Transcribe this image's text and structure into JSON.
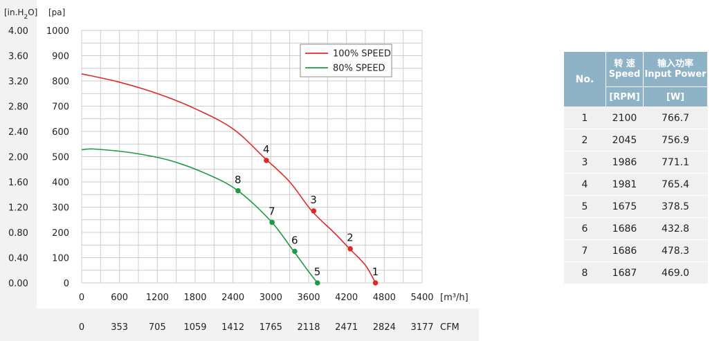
{
  "chart_data": {
    "type": "line",
    "y_left_label": "[in.H2O]",
    "y_left_ticks": [
      "0.00",
      "0.40",
      "0.80",
      "1.20",
      "1.60",
      "2.00",
      "2.40",
      "2.80",
      "3.20",
      "3.60",
      "4.00"
    ],
    "y_right_label": "[pa]",
    "y_ticks": [
      "0",
      "100",
      "200",
      "300",
      "400",
      "500",
      "600",
      "700",
      "800",
      "900",
      "1000"
    ],
    "ylim": [
      0,
      1000
    ],
    "x_ticks": [
      "0",
      "600",
      "1200",
      "1800",
      "2400",
      "3000",
      "3600",
      "4200",
      "4800",
      "5400"
    ],
    "x_unit": "[m³/h]",
    "xlim": [
      0,
      5400
    ],
    "x2_ticks": [
      "0",
      "353",
      "705",
      "1059",
      "1412",
      "1765",
      "2118",
      "2471",
      "2824",
      "3177"
    ],
    "x2_unit": "CFM",
    "grid": true,
    "legend_position": "top-right",
    "series": [
      {
        "name": "100% SPEED",
        "color": "#e0282a",
        "curve": [
          [
            0,
            828
          ],
          [
            600,
            795
          ],
          [
            1200,
            750
          ],
          [
            1800,
            690
          ],
          [
            2400,
            610
          ],
          [
            2900,
            495
          ],
          [
            3300,
            400
          ],
          [
            3650,
            285
          ],
          [
            4000,
            200
          ],
          [
            4250,
            135
          ],
          [
            4500,
            70
          ],
          [
            4660,
            0
          ]
        ],
        "points": [
          {
            "label": "4",
            "x": 2930,
            "y": 485
          },
          {
            "label": "3",
            "x": 3680,
            "y": 285
          },
          {
            "label": "2",
            "x": 4260,
            "y": 135
          },
          {
            "label": "1",
            "x": 4660,
            "y": 0
          }
        ]
      },
      {
        "name": "80%  SPEED",
        "color": "#1e9a45",
        "curve": [
          [
            0,
            527
          ],
          [
            200,
            530
          ],
          [
            800,
            515
          ],
          [
            1400,
            485
          ],
          [
            2000,
            430
          ],
          [
            2480,
            365
          ],
          [
            3000,
            245
          ],
          [
            3350,
            130
          ],
          [
            3600,
            45
          ],
          [
            3740,
            0
          ]
        ],
        "points": [
          {
            "label": "8",
            "x": 2480,
            "y": 365
          },
          {
            "label": "7",
            "x": 3020,
            "y": 240
          },
          {
            "label": "6",
            "x": 3380,
            "y": 125
          },
          {
            "label": "5",
            "x": 3740,
            "y": 0
          }
        ]
      }
    ]
  },
  "table": {
    "header": {
      "no": "No.",
      "speed_cn": "转 速",
      "speed_en": "Speed",
      "power_cn": "输入功率",
      "power_en": "Input Power",
      "speed_unit": "[RPM]",
      "power_unit": "[W]"
    },
    "rows": [
      {
        "no": "1",
        "rpm": "2100",
        "w": "766.7"
      },
      {
        "no": "2",
        "rpm": "2045",
        "w": "756.9"
      },
      {
        "no": "3",
        "rpm": "1986",
        "w": "771.1"
      },
      {
        "no": "4",
        "rpm": "1981",
        "w": "765.4"
      },
      {
        "no": "5",
        "rpm": "1675",
        "w": "378.5"
      },
      {
        "no": "6",
        "rpm": "1686",
        "w": "432.8"
      },
      {
        "no": "7",
        "rpm": "1686",
        "w": "478.3"
      },
      {
        "no": "8",
        "rpm": "1687",
        "w": "469.0"
      }
    ]
  }
}
